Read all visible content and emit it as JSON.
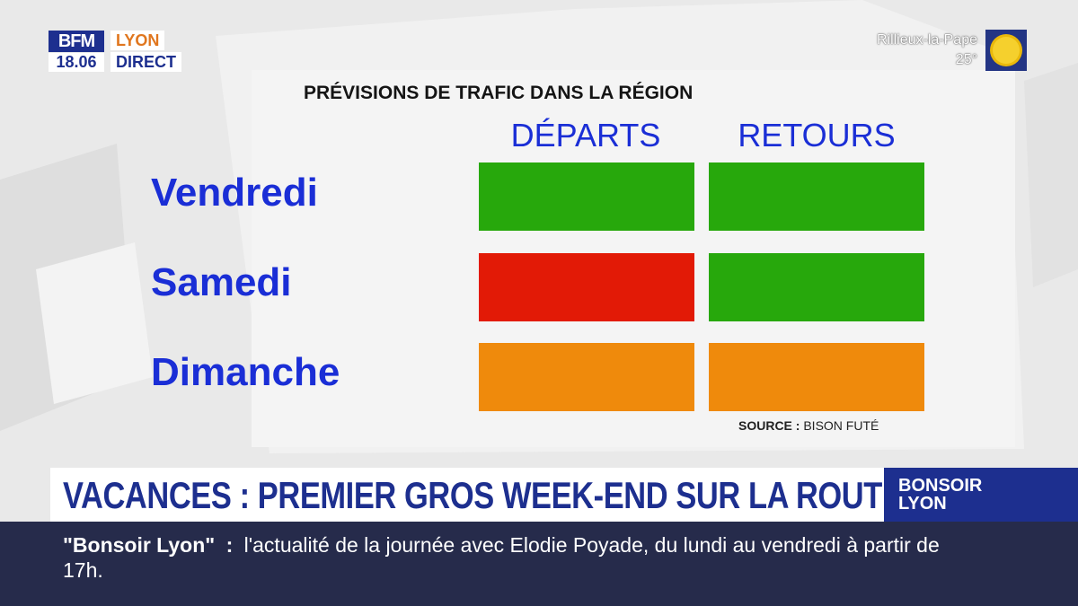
{
  "header": {
    "logo": "BFM",
    "time": "18.06",
    "city": "LYON",
    "live": "DIRECT"
  },
  "weather": {
    "location": "Rillieux-la-Pape",
    "temperature": "25°",
    "icon": "sun-icon"
  },
  "chart": {
    "title": "PRÉVISIONS DE TRAFIC DANS LA RÉGION",
    "columns": [
      "DÉPARTS",
      "RETOURS"
    ],
    "rows": [
      {
        "day": "Vendredi",
        "departs": "green",
        "retours": "green"
      },
      {
        "day": "Samedi",
        "departs": "red",
        "retours": "green"
      },
      {
        "day": "Dimanche",
        "departs": "orange",
        "retours": "orange"
      }
    ],
    "colors": {
      "green": "#27a80c",
      "red": "#e21a06",
      "orange": "#ef8a0c"
    },
    "source_label": "SOURCE :",
    "source_value": "BISON FUTÉ"
  },
  "banner": {
    "headline": "VACANCES : PREMIER GROS WEEK-END SUR LA ROUTE",
    "show_line1": "BONSOIR",
    "show_line2": "LYON"
  },
  "ticker": {
    "show_name": "\"Bonsoir Lyon\"",
    "separator": ":",
    "text": "l'actualité de la journée avec Elodie Poyade, du lundi au vendredi à partir de 17h."
  }
}
